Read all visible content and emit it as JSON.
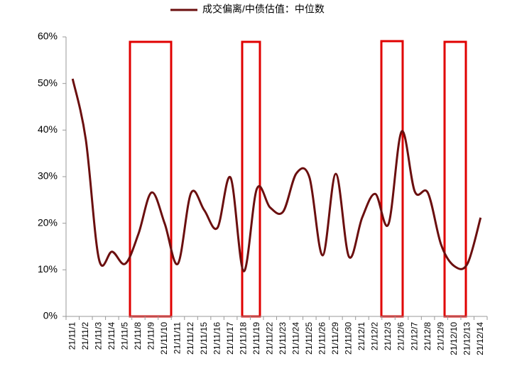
{
  "chart_data": {
    "type": "line",
    "categories": [
      "21/11/1",
      "21/11/2",
      "21/11/3",
      "21/11/4",
      "21/11/5",
      "21/11/8",
      "21/11/9",
      "21/11/10",
      "21/11/11",
      "21/11/12",
      "21/11/15",
      "21/11/16",
      "21/11/17",
      "21/11/18",
      "21/11/19",
      "21/11/22",
      "21/11/23",
      "21/11/24",
      "21/11/25",
      "21/11/26",
      "21/11/29",
      "21/11/30",
      "21/12/1",
      "21/12/2",
      "21/12/3",
      "21/12/6",
      "21/12/7",
      "21/12/8",
      "21/12/9",
      "21/12/10",
      "21/12/13",
      "21/12/14"
    ],
    "series": [
      {
        "name": "成交偏离/中债估值：中位数",
        "color": "#6b0f0f",
        "values": [
          51,
          38,
          12.3,
          13.9,
          11.3,
          17.7,
          26.6,
          19.9,
          11.3,
          26.5,
          22.8,
          19,
          29.8,
          9.7,
          27.4,
          23.4,
          22.5,
          30.7,
          29.8,
          13.1,
          30.6,
          12.8,
          21.2,
          26.3,
          19.8,
          39.7,
          26.8,
          26.5,
          15.4,
          10.8,
          11.3,
          21.2
        ]
      }
    ],
    "ylim": [
      0,
      60
    ],
    "yticks": [
      {
        "value": 0,
        "label": "0%"
      },
      {
        "value": 10,
        "label": "10%"
      },
      {
        "value": 20,
        "label": "20%"
      },
      {
        "value": 30,
        "label": "30%"
      },
      {
        "value": 40,
        "label": "40%"
      },
      {
        "value": 50,
        "label": "50%"
      },
      {
        "value": 60,
        "label": "60%"
      }
    ],
    "legend": "top",
    "grid": false
  }
}
